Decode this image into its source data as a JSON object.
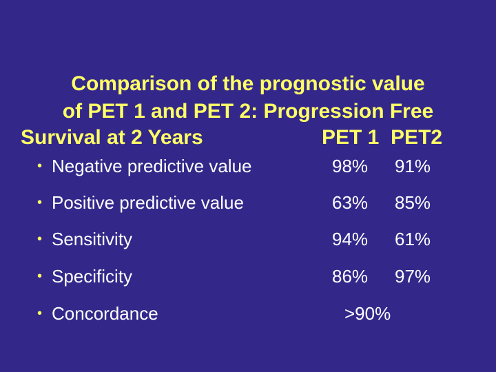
{
  "title": {
    "line1": "Comparison of the prognostic value",
    "line2": "of PET 1 and PET 2: Progression Free",
    "line3_left": "Survival at 2 Years",
    "col1_header": "PET 1",
    "col2_header": "PET2"
  },
  "bullet_glyph": "•",
  "rows": [
    {
      "label": "Negative predictive value",
      "pet1": "98%",
      "pet2": "91%"
    },
    {
      "label": "Positive predictive value",
      "pet1": "63%",
      "pet2": "85%"
    },
    {
      "label": "Sensitivity",
      "pet1": "94%",
      "pet2": "61%"
    },
    {
      "label": "Specificity",
      "pet1": "86%",
      "pet2": "97%"
    },
    {
      "label": "Concordance",
      "combined": ">90%"
    }
  ],
  "colors": {
    "background": "#33288a",
    "title": "#ffff66",
    "body_text": "#ffffff",
    "bullet": "#ffff66"
  }
}
